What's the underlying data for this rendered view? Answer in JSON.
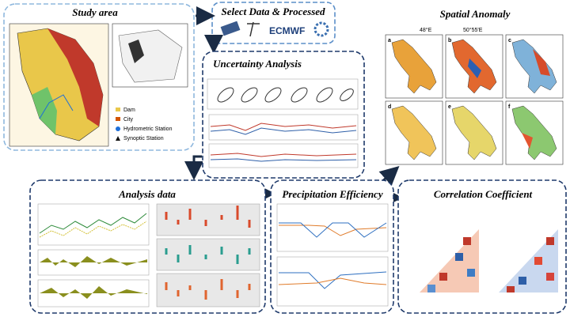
{
  "study_area": {
    "title": "Study area",
    "legend": [
      "Dam",
      "City",
      "Hydrometric Station",
      "Synoptic Station"
    ]
  },
  "data_selection": {
    "title": "Select Data & Processed",
    "source": "ECMWF"
  },
  "uncertainty": {
    "title": "Uncertainty Analysis"
  },
  "spatial_anomaly": {
    "title": "Spatial Anomaly",
    "lon_labels": [
      "48°E",
      "50°55'E"
    ],
    "panels": [
      "a",
      "b",
      "c",
      "d",
      "e",
      "f"
    ]
  },
  "analysis_data": {
    "title": "Analysis data"
  },
  "precipitation_efficiency": {
    "title": "Precipitation Efficiency"
  },
  "correlation": {
    "title": "Correlation Coefficient"
  }
}
